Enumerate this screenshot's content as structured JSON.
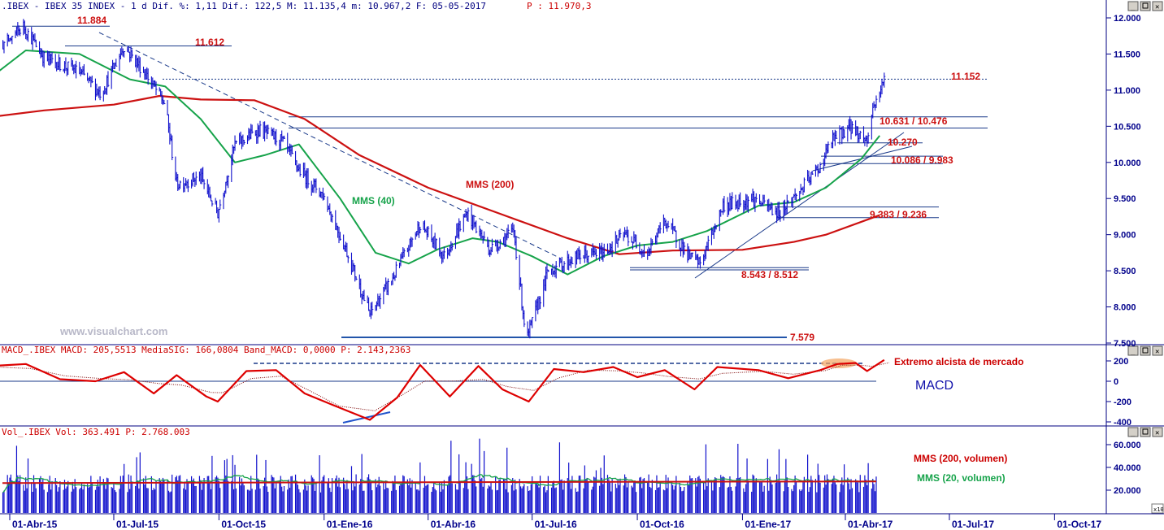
{
  "panels": {
    "price": {
      "header": ".IBEX - IBEX 35 INDEX -  1 d Dif. %: 1,11 Dif.: 122,5 M: 11.135,4 m: 10.967,2 F: 05-05-2017",
      "header_p": "P : 11.970,3",
      "watermark": "www.visualchart.com"
    },
    "macd": {
      "header": "MACD_.IBEX MACD: 205,5513 MediaSIG: 166,0804 Band_MACD: 0,0000 P: 2.143,2363",
      "label_extremo": "Extremo alcista de mercado",
      "label_macd": "MACD"
    },
    "volume": {
      "header": "Vol_.IBEX Vol: 363.491 P: 2.768.003",
      "label_mms200": "MMS (200, volumen)",
      "label_mms20": "MMS (20, volumen)",
      "corner": "x10"
    }
  },
  "chart_data": [
    {
      "type": "ohlc-bar",
      "name": "IBEX 35 INDEX",
      "y_ticks": [
        "12.000",
        "11.500",
        "11.000",
        "10.500",
        "10.000",
        "9.500",
        "9.000",
        "8.500",
        "8.000",
        "7.500"
      ],
      "ylim": [
        7500,
        12000
      ],
      "x_ticks": [
        "01-Abr-15",
        "01-Jul-15",
        "01-Oct-15",
        "01-Ene-16",
        "01-Abr-16",
        "01-Jul-16",
        "01-Oct-16",
        "01-Ene-17",
        "01-Abr-17",
        "01-Jul-17",
        "01-Oct-17"
      ],
      "close_path": [
        [
          "2015-03-01",
          11380
        ],
        [
          "2015-04-01",
          11700
        ],
        [
          "2015-04-13",
          11884
        ],
        [
          "2015-05-01",
          11450
        ],
        [
          "2015-06-01",
          11250
        ],
        [
          "2015-06-20",
          10950
        ],
        [
          "2015-07-10",
          11612
        ],
        [
          "2015-07-31",
          11180
        ],
        [
          "2015-08-15",
          10800
        ],
        [
          "2015-08-25",
          9700
        ],
        [
          "2015-09-15",
          9800
        ],
        [
          "2015-09-30",
          9300
        ],
        [
          "2015-10-15",
          10250
        ],
        [
          "2015-11-05",
          10450
        ],
        [
          "2015-11-25",
          10300
        ],
        [
          "2015-12-10",
          9900
        ],
        [
          "2015-12-31",
          9550
        ],
        [
          "2016-01-20",
          8800
        ],
        [
          "2016-02-10",
          7900
        ],
        [
          "2016-03-01",
          8400
        ],
        [
          "2016-03-25",
          9150
        ],
        [
          "2016-04-15",
          8700
        ],
        [
          "2016-05-05",
          9300
        ],
        [
          "2016-05-25",
          8800
        ],
        [
          "2016-06-15",
          9050
        ],
        [
          "2016-06-24",
          7800
        ],
        [
          "2016-06-27",
          7579
        ],
        [
          "2016-07-15",
          8500
        ],
        [
          "2016-08-10",
          8700
        ],
        [
          "2016-09-01",
          8750
        ],
        [
          "2016-09-20",
          9000
        ],
        [
          "2016-10-10",
          8750
        ],
        [
          "2016-10-25",
          9200
        ],
        [
          "2016-11-15",
          8700
        ],
        [
          "2016-11-25",
          8600
        ],
        [
          "2016-12-15",
          9400
        ],
        [
          "2017-01-10",
          9500
        ],
        [
          "2017-02-01",
          9300
        ],
        [
          "2017-02-20",
          9600
        ],
        [
          "2017-03-10",
          9950
        ],
        [
          "2017-03-20",
          10300
        ],
        [
          "2017-04-05",
          10500
        ],
        [
          "2017-04-20",
          10300
        ],
        [
          "2017-04-25",
          10750
        ],
        [
          "2017-05-05",
          11135
        ]
      ],
      "series": [
        {
          "name": "MMS (40)",
          "color": "#16a34a",
          "points": [
            [
              "2015-03-01",
              11000
            ],
            [
              "2015-04-15",
              11550
            ],
            [
              "2015-06-01",
              11500
            ],
            [
              "2015-07-15",
              11150
            ],
            [
              "2015-08-15",
              11050
            ],
            [
              "2015-09-15",
              10600
            ],
            [
              "2015-10-15",
              10000
            ],
            [
              "2015-11-10",
              10100
            ],
            [
              "2015-12-10",
              10250
            ],
            [
              "2016-01-15",
              9500
            ],
            [
              "2016-02-15",
              8750
            ],
            [
              "2016-03-15",
              8600
            ],
            [
              "2016-04-10",
              8800
            ],
            [
              "2016-05-10",
              8950
            ],
            [
              "2016-06-01",
              8900
            ],
            [
              "2016-07-01",
              8700
            ],
            [
              "2016-08-01",
              8450
            ],
            [
              "2016-09-01",
              8700
            ],
            [
              "2016-10-01",
              8850
            ],
            [
              "2016-11-01",
              8900
            ],
            [
              "2016-12-01",
              9050
            ],
            [
              "2017-01-15",
              9400
            ],
            [
              "2017-02-15",
              9450
            ],
            [
              "2017-03-15",
              9650
            ],
            [
              "2017-04-15",
              10050
            ],
            [
              "2017-05-01",
              10370
            ]
          ]
        },
        {
          "name": "MMS (200)",
          "color": "#cc1111",
          "points": [
            [
              "2015-03-01",
              10600
            ],
            [
              "2015-05-01",
              10720
            ],
            [
              "2015-07-01",
              10800
            ],
            [
              "2015-08-10",
              10920
            ],
            [
              "2015-09-15",
              10870
            ],
            [
              "2015-11-01",
              10860
            ],
            [
              "2015-12-15",
              10600
            ],
            [
              "2016-02-01",
              10100
            ],
            [
              "2016-04-01",
              9650
            ],
            [
              "2016-06-01",
              9300
            ],
            [
              "2016-08-01",
              8950
            ],
            [
              "2016-09-15",
              8730
            ],
            [
              "2016-11-01",
              8780
            ],
            [
              "2017-01-01",
              8790
            ],
            [
              "2017-02-15",
              8900
            ],
            [
              "2017-03-15",
              9000
            ],
            [
              "2017-05-01",
              9270
            ]
          ]
        }
      ],
      "levels": [
        {
          "label": "11.884",
          "value": 11884,
          "color": "#cc1111"
        },
        {
          "label": "11.612",
          "value": 11612,
          "color": "#cc1111"
        },
        {
          "label": "11.152",
          "value": 11152,
          "color": "#cc1111",
          "style": "dotted"
        },
        {
          "label": "10.631 / 10.476",
          "values": [
            10631,
            10476
          ],
          "color": "#cc1111"
        },
        {
          "label": "10.270",
          "value": 10270,
          "color": "#cc1111"
        },
        {
          "label": "10.086 / 9.983",
          "values": [
            10086,
            9983
          ],
          "color": "#cc1111"
        },
        {
          "label": "9.383 / 9.236",
          "values": [
            9383,
            9236
          ],
          "color": "#cc1111"
        },
        {
          "label": "8.543 / 8.512",
          "values": [
            8543,
            8512
          ],
          "color": "#cc1111"
        },
        {
          "label": "7.579",
          "value": 7579,
          "color": "#cc1111"
        }
      ],
      "annotations": [
        {
          "label": "MMS (200)",
          "color": "#cc1111"
        },
        {
          "label": "MMS (40)",
          "color": "#16a34a"
        }
      ]
    },
    {
      "type": "line",
      "name": "MACD",
      "y_ticks": [
        "200",
        "0",
        "-200",
        "-400"
      ],
      "ylim": [
        -420,
        230
      ],
      "points": [
        [
          "2015-03-01",
          140
        ],
        [
          "2015-04-15",
          170
        ],
        [
          "2015-05-15",
          20
        ],
        [
          "2015-06-15",
          0
        ],
        [
          "2015-07-10",
          90
        ],
        [
          "2015-08-05",
          -120
        ],
        [
          "2015-08-25",
          60
        ],
        [
          "2015-09-20",
          -150
        ],
        [
          "2015-09-30",
          -200
        ],
        [
          "2015-10-25",
          100
        ],
        [
          "2015-11-20",
          110
        ],
        [
          "2015-12-15",
          -120
        ],
        [
          "2016-01-10",
          -240
        ],
        [
          "2016-02-10",
          -380
        ],
        [
          "2016-03-05",
          -160
        ],
        [
          "2016-03-25",
          160
        ],
        [
          "2016-04-20",
          -150
        ],
        [
          "2016-05-15",
          150
        ],
        [
          "2016-06-05",
          -80
        ],
        [
          "2016-06-28",
          -200
        ],
        [
          "2016-07-20",
          120
        ],
        [
          "2016-08-15",
          90
        ],
        [
          "2016-09-10",
          140
        ],
        [
          "2016-10-01",
          40
        ],
        [
          "2016-10-25",
          110
        ],
        [
          "2016-11-20",
          -80
        ],
        [
          "2016-12-10",
          140
        ],
        [
          "2017-01-15",
          110
        ],
        [
          "2017-02-10",
          30
        ],
        [
          "2017-03-10",
          110
        ],
        [
          "2017-03-25",
          170
        ],
        [
          "2017-04-10",
          180
        ],
        [
          "2017-04-20",
          100
        ],
        [
          "2017-05-05",
          210
        ]
      ],
      "signal_color": "#7a0000",
      "line_color": "#dd0000",
      "annotations": [
        "Extremo alcista de mercado",
        "MACD"
      ]
    },
    {
      "type": "bar",
      "name": "Volumen",
      "y_ticks": [
        "60.000",
        "40.000",
        "20.000"
      ],
      "ylim": [
        0,
        65000
      ],
      "series": [
        {
          "name": "MMS (200, volumen)",
          "color": "#cc1111",
          "value": 27000
        },
        {
          "name": "MMS (20, volumen)",
          "color": "#16a34a"
        }
      ],
      "bar_color": "#1010cc"
    }
  ]
}
